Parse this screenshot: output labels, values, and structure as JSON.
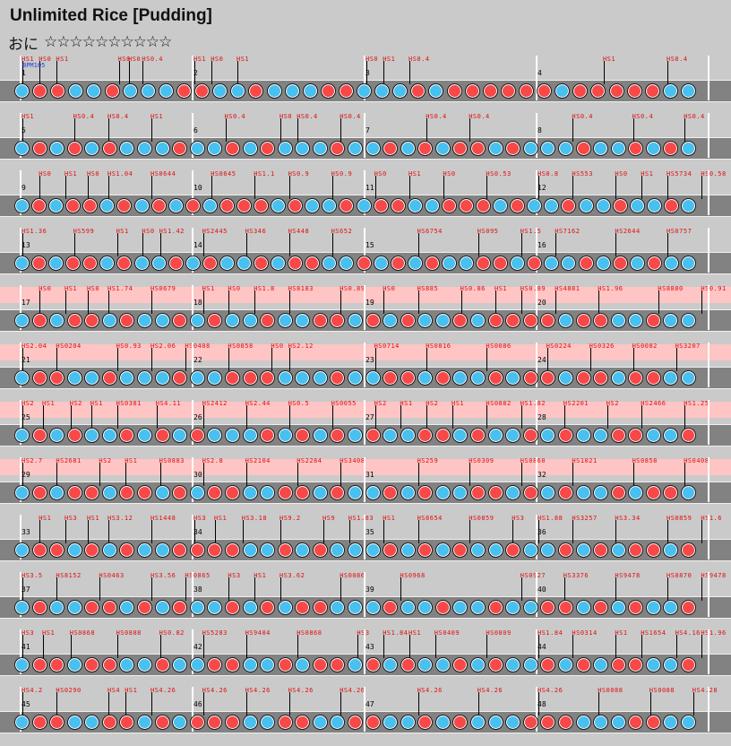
{
  "header": {
    "title": "Unlimited Rice [Pudding]",
    "course": "おに",
    "stars": "☆☆☆☆☆☆☆☆☆☆"
  },
  "bpm_label": "BPM105",
  "colors": {
    "don": "#f84848",
    "ka": "#48c0f0",
    "gogo_band": "#ffc4c4"
  },
  "rows": [
    {
      "measures": [
        "1",
        "2",
        "3",
        "4"
      ],
      "gogo": false,
      "labels": [
        {
          "m": 0,
          "t": "HS1"
        },
        {
          "m": 0.1,
          "t": "HS0"
        },
        {
          "m": 0.2,
          "t": "HS1"
        },
        {
          "m": 0.56,
          "t": "HS0"
        },
        {
          "m": 0.62,
          "t": "HS0"
        },
        {
          "m": 0.7,
          "t": "HS0.4"
        },
        {
          "m": 1,
          "t": "HS1"
        },
        {
          "m": 1.1,
          "t": "HS0"
        },
        {
          "m": 1.25,
          "t": "HS1"
        },
        {
          "m": 2,
          "t": "HS0"
        },
        {
          "m": 2.1,
          "t": "HS1"
        },
        {
          "m": 2.25,
          "t": "HS0.4"
        },
        {
          "m": 3.38,
          "t": "HS1"
        },
        {
          "m": 3.75,
          "t": "HS0.4"
        }
      ],
      "notes": "kddkkdkkkddkkdkkkddkkkdkddddddkdddddkk"
    },
    {
      "measures": [
        "5",
        "6",
        "7",
        "8"
      ],
      "gogo": false,
      "labels": [
        {
          "m": 0,
          "t": "HS1"
        },
        {
          "m": 0.3,
          "t": "HS0.4"
        },
        {
          "m": 0.5,
          "t": "HS0.4"
        },
        {
          "m": 0.75,
          "t": "HS1"
        },
        {
          "m": 1.18,
          "t": "HS0.4"
        },
        {
          "m": 1.5,
          "t": "HS0"
        },
        {
          "m": 1.6,
          "t": "HS0.4"
        },
        {
          "m": 1.85,
          "t": "HS0.4"
        },
        {
          "m": 2.35,
          "t": "HS0.4"
        },
        {
          "m": 2.6,
          "t": "HS0.4"
        },
        {
          "m": 3.2,
          "t": "HS0.4"
        },
        {
          "m": 3.55,
          "t": "HS0.4"
        },
        {
          "m": 3.85,
          "t": "HS0.4"
        }
      ],
      "notes": "kdkdkdkkkdkkdkdkkkdkkdkdkddkdkkkdkkdkdk"
    },
    {
      "measures": [
        "9",
        "10",
        "11",
        "12"
      ],
      "gogo": false,
      "labels": [
        {
          "m": 0.1,
          "t": "HS0"
        },
        {
          "m": 0.25,
          "t": "HS1"
        },
        {
          "m": 0.38,
          "t": "HS0"
        },
        {
          "m": 0.5,
          "t": "HS1.04"
        },
        {
          "m": 0.75,
          "t": "HS0644"
        },
        {
          "m": 1.1,
          "t": "HS0645"
        },
        {
          "m": 1.35,
          "t": "HS1.1"
        },
        {
          "m": 1.55,
          "t": "HS0.9"
        },
        {
          "m": 1.8,
          "t": "HS0.9"
        },
        {
          "m": 2.05,
          "t": "HS0"
        },
        {
          "m": 2.25,
          "t": "HS1"
        },
        {
          "m": 2.45,
          "t": "HS0"
        },
        {
          "m": 2.7,
          "t": "HS0.53"
        },
        {
          "m": 3.0,
          "t": "HS0.8"
        },
        {
          "m": 3.2,
          "t": "HS553"
        },
        {
          "m": 3.45,
          "t": "HS0"
        },
        {
          "m": 3.6,
          "t": "HS1"
        },
        {
          "m": 3.75,
          "t": "HS5734"
        },
        {
          "m": 3.95,
          "t": "HS0.58"
        }
      ],
      "notes": "kdkddkdkdkdkdddkdkkdkddkkdddkdkkdkkdkkdk"
    },
    {
      "measures": [
        "13",
        "14",
        "15",
        "16"
      ],
      "gogo": false,
      "labels": [
        {
          "m": 0,
          "t": "HS1.36"
        },
        {
          "m": 0.3,
          "t": "HS599"
        },
        {
          "m": 0.55,
          "t": "HS1"
        },
        {
          "m": 0.7,
          "t": "HS0"
        },
        {
          "m": 0.8,
          "t": "HS1.42"
        },
        {
          "m": 1.05,
          "t": "HS2445"
        },
        {
          "m": 1.3,
          "t": "HS346"
        },
        {
          "m": 1.55,
          "t": "HS448"
        },
        {
          "m": 1.8,
          "t": "HS652"
        },
        {
          "m": 2.3,
          "t": "HS6754"
        },
        {
          "m": 2.65,
          "t": "HS095"
        },
        {
          "m": 2.9,
          "t": "HS1.5"
        },
        {
          "m": 3.1,
          "t": "HS7162"
        },
        {
          "m": 3.45,
          "t": "HS2644"
        },
        {
          "m": 3.75,
          "t": "HS0757"
        }
      ],
      "notes": "kdkddkdkkdkdkkdkddkkdkdkdkkddkdkkdkdkdkk"
    },
    {
      "measures": [
        "17",
        "18",
        "19",
        "20"
      ],
      "gogo": true,
      "labels": [
        {
          "m": 0.1,
          "t": "HS0"
        },
        {
          "m": 0.25,
          "t": "HS1"
        },
        {
          "m": 0.38,
          "t": "HS0"
        },
        {
          "m": 0.5,
          "t": "HS1.74"
        },
        {
          "m": 0.75,
          "t": "HS0679"
        },
        {
          "m": 1.05,
          "t": "HS1"
        },
        {
          "m": 1.2,
          "t": "HS0"
        },
        {
          "m": 1.35,
          "t": "HS1.8"
        },
        {
          "m": 1.55,
          "t": "HS8183"
        },
        {
          "m": 1.85,
          "t": "HS0.89"
        },
        {
          "m": 2.1,
          "t": "HS0"
        },
        {
          "m": 2.3,
          "t": "HS885"
        },
        {
          "m": 2.55,
          "t": "HS0.86"
        },
        {
          "m": 2.75,
          "t": "HS1"
        },
        {
          "m": 2.9,
          "t": "HS0.89"
        },
        {
          "m": 3.1,
          "t": "HS4881"
        },
        {
          "m": 3.35,
          "t": "HS1.96"
        },
        {
          "m": 3.7,
          "t": "HS8880"
        },
        {
          "m": 3.95,
          "t": "HS0.91"
        }
      ],
      "notes": "kdkddkdkkdkdkkdkkddkdkdkkdkddddkddkkdkk"
    },
    {
      "measures": [
        "21",
        "22",
        "23",
        "24"
      ],
      "gogo": true,
      "labels": [
        {
          "m": 0,
          "t": "HS2.04"
        },
        {
          "m": 0.2,
          "t": "HS0204"
        },
        {
          "m": 0.55,
          "t": "HS0.93"
        },
        {
          "m": 0.75,
          "t": "HS2.06"
        },
        {
          "m": 0.95,
          "t": "HS0408"
        },
        {
          "m": 1.2,
          "t": "HS0858"
        },
        {
          "m": 1.45,
          "t": "HS0"
        },
        {
          "m": 1.55,
          "t": "HS2.12"
        },
        {
          "m": 2.05,
          "t": "HS0714"
        },
        {
          "m": 2.35,
          "t": "HS0816"
        },
        {
          "m": 2.7,
          "t": "HS0086"
        },
        {
          "m": 3.05,
          "t": "HS0224"
        },
        {
          "m": 3.3,
          "t": "HS0326"
        },
        {
          "m": 3.55,
          "t": "HS0082"
        },
        {
          "m": 3.8,
          "t": "HS3207"
        }
      ],
      "notes": "kddkkdkkkdkkdddkkkdkkddkdkkdkddkddkddkk"
    },
    {
      "measures": [
        "25",
        "26",
        "27",
        "28"
      ],
      "gogo": true,
      "labels": [
        {
          "m": 0,
          "t": "HS2"
        },
        {
          "m": 0.12,
          "t": "HS1"
        },
        {
          "m": 0.28,
          "t": "HS2"
        },
        {
          "m": 0.4,
          "t": "HS1"
        },
        {
          "m": 0.55,
          "t": "HS0381"
        },
        {
          "m": 0.78,
          "t": "HS4.11"
        },
        {
          "m": 1.05,
          "t": "HS2412"
        },
        {
          "m": 1.3,
          "t": "HS2.44"
        },
        {
          "m": 1.55,
          "t": "HS0.5"
        },
        {
          "m": 1.8,
          "t": "HS0055"
        },
        {
          "m": 2.05,
          "t": "HS2"
        },
        {
          "m": 2.2,
          "t": "HS1"
        },
        {
          "m": 2.35,
          "t": "HS2"
        },
        {
          "m": 2.5,
          "t": "HS1"
        },
        {
          "m": 2.7,
          "t": "HS0882"
        },
        {
          "m": 2.9,
          "t": "HS1.82"
        },
        {
          "m": 3.15,
          "t": "HS2201"
        },
        {
          "m": 3.4,
          "t": "HS2"
        },
        {
          "m": 3.6,
          "t": "HS2466"
        },
        {
          "m": 3.85,
          "t": "HS1.25"
        }
      ],
      "notes": "kdkdkkdkdkdkkkdkdkdkdkkddkdkkdkdkkddkkd"
    },
    {
      "measures": [
        "29",
        "30",
        "31",
        "32"
      ],
      "gogo": true,
      "labels": [
        {
          "m": 0,
          "t": "HS2.7"
        },
        {
          "m": 0.2,
          "t": "HS2681"
        },
        {
          "m": 0.45,
          "t": "HS2"
        },
        {
          "m": 0.6,
          "t": "HS1"
        },
        {
          "m": 0.8,
          "t": "HS0883"
        },
        {
          "m": 1.05,
          "t": "HS2.8"
        },
        {
          "m": 1.3,
          "t": "HS2104"
        },
        {
          "m": 1.6,
          "t": "HS2284"
        },
        {
          "m": 1.85,
          "t": "HS3408"
        },
        {
          "m": 2.3,
          "t": "HS259"
        },
        {
          "m": 2.6,
          "t": "HS0309"
        },
        {
          "m": 2.9,
          "t": "HS0860"
        },
        {
          "m": 3.2,
          "t": "HS1021"
        },
        {
          "m": 3.55,
          "t": "HS0858"
        },
        {
          "m": 3.85,
          "t": "HS0408"
        }
      ],
      "notes": "kdkddkddkdkddkkddkdkkdkdkkddkdkdkkdkddk"
    },
    {
      "measures": [
        "33",
        "34",
        "35",
        "36"
      ],
      "gogo": false,
      "labels": [
        {
          "m": 0.1,
          "t": "HS1"
        },
        {
          "m": 0.25,
          "t": "HS3"
        },
        {
          "m": 0.38,
          "t": "HS1"
        },
        {
          "m": 0.5,
          "t": "HS3.12"
        },
        {
          "m": 0.75,
          "t": "HS1448"
        },
        {
          "m": 1.0,
          "t": "HS3"
        },
        {
          "m": 1.12,
          "t": "HS1"
        },
        {
          "m": 1.28,
          "t": "HS3.18"
        },
        {
          "m": 1.5,
          "t": "HS9.2"
        },
        {
          "m": 1.75,
          "t": "HS9"
        },
        {
          "m": 1.9,
          "t": "HS1.83"
        },
        {
          "m": 2.1,
          "t": "HS1"
        },
        {
          "m": 2.3,
          "t": "HS8654"
        },
        {
          "m": 2.6,
          "t": "HS0859"
        },
        {
          "m": 2.85,
          "t": "HS3"
        },
        {
          "m": 3.0,
          "t": "HS1.88"
        },
        {
          "m": 3.2,
          "t": "HS3257"
        },
        {
          "m": 3.45,
          "t": "HS3.34"
        },
        {
          "m": 3.75,
          "t": "HS0859"
        },
        {
          "m": 3.95,
          "t": "HS1.6"
        }
      ],
      "notes": "kddkdkdkkddddkkdkdkkkdkdkdkkdkkdkdkddkd"
    },
    {
      "measures": [
        "37",
        "38",
        "39",
        "40"
      ],
      "gogo": false,
      "labels": [
        {
          "m": 0,
          "t": "HS3.5"
        },
        {
          "m": 0.2,
          "t": "HS8152"
        },
        {
          "m": 0.45,
          "t": "HS0463"
        },
        {
          "m": 0.75,
          "t": "HS3.56"
        },
        {
          "m": 0.95,
          "t": "HS0865"
        },
        {
          "m": 1.2,
          "t": "HS3"
        },
        {
          "m": 1.35,
          "t": "HS1"
        },
        {
          "m": 1.5,
          "t": "HS3.62"
        },
        {
          "m": 1.85,
          "t": "HS0086"
        },
        {
          "m": 2.2,
          "t": "HS0968"
        },
        {
          "m": 2.9,
          "t": "HS0927"
        },
        {
          "m": 3.15,
          "t": "HS3376"
        },
        {
          "m": 3.45,
          "t": "HS9478"
        },
        {
          "m": 3.75,
          "t": "HS0870"
        },
        {
          "m": 3.95,
          "t": "HS9478"
        }
      ],
      "notes": "kdkkddkdkdkkdkdkddkkkdkkdkkdkkddkdkdkkd"
    },
    {
      "measures": [
        "41",
        "42",
        "43",
        "44"
      ],
      "gogo": false,
      "labels": [
        {
          "m": 0,
          "t": "HS3"
        },
        {
          "m": 0.12,
          "t": "HS1"
        },
        {
          "m": 0.28,
          "t": "HS0868"
        },
        {
          "m": 0.55,
          "t": "HS0888"
        },
        {
          "m": 0.8,
          "t": "HS0.82"
        },
        {
          "m": 1.05,
          "t": "HS5283"
        },
        {
          "m": 1.3,
          "t": "HS9404"
        },
        {
          "m": 1.6,
          "t": "HS0868"
        },
        {
          "m": 1.95,
          "t": "HS3"
        },
        {
          "m": 2.1,
          "t": "HS1.84"
        },
        {
          "m": 2.25,
          "t": "HS1"
        },
        {
          "m": 2.4,
          "t": "HS0409"
        },
        {
          "m": 2.7,
          "t": "HS0809"
        },
        {
          "m": 3.0,
          "t": "HS1.84"
        },
        {
          "m": 3.2,
          "t": "HS0314"
        },
        {
          "m": 3.45,
          "t": "HS1"
        },
        {
          "m": 3.6,
          "t": "HS1654"
        },
        {
          "m": 3.8,
          "t": "HS4.16"
        },
        {
          "m": 3.95,
          "t": "HS1.96"
        }
      ],
      "notes": "kddkddkkdkkddkkdkddkdkdkkdkdkkdkdkddkkd"
    },
    {
      "measures": [
        "45",
        "46",
        "47",
        "48"
      ],
      "gogo": false,
      "labels": [
        {
          "m": 0,
          "t": "HS4.2"
        },
        {
          "m": 0.2,
          "t": "HS0290"
        },
        {
          "m": 0.5,
          "t": "HS4"
        },
        {
          "m": 0.6,
          "t": "HS1"
        },
        {
          "m": 0.75,
          "t": "HS4.26"
        },
        {
          "m": 1.05,
          "t": "HS4.26"
        },
        {
          "m": 1.3,
          "t": "HS4.26"
        },
        {
          "m": 1.55,
          "t": "HS4.26"
        },
        {
          "m": 1.85,
          "t": "HS4.26"
        },
        {
          "m": 2.3,
          "t": "HS4.26"
        },
        {
          "m": 2.65,
          "t": "HS4.26"
        },
        {
          "m": 3.0,
          "t": "HS4.26"
        },
        {
          "m": 3.35,
          "t": "HS0088"
        },
        {
          "m": 3.65,
          "t": "HS0088"
        },
        {
          "m": 3.9,
          "t": "HS4.28"
        }
      ],
      "notes": "kddkkddkdkdddkkddkkddkkdkdkkkdddkkkddkk"
    }
  ]
}
